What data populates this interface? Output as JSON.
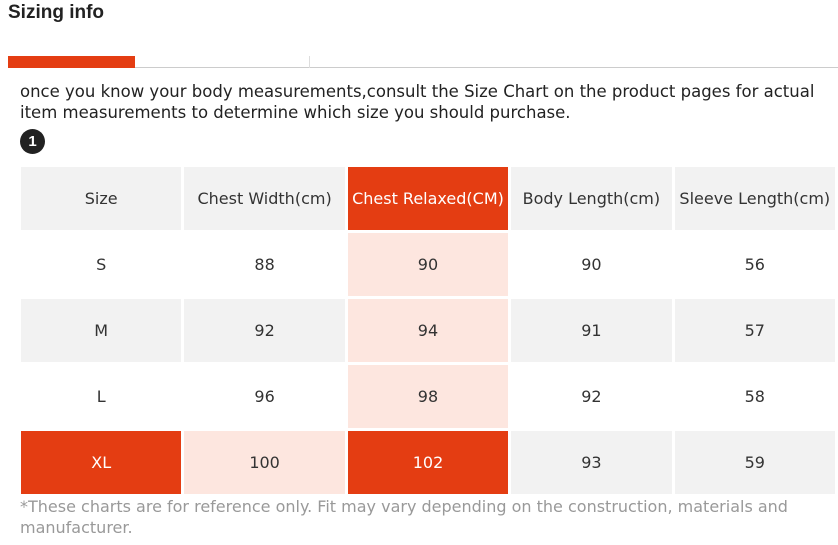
{
  "header": {
    "title": "Sizing info"
  },
  "intro": "once you know your body measurements,consult the Size Chart on the product pages for actual item measurements to determine which size you should purchase.",
  "step": "1",
  "table": {
    "columns": [
      "Size",
      "Chest Width(cm)",
      "Chest Relaxed(CM)",
      "Body Length(cm)",
      "Sleeve Length(cm)"
    ],
    "rows": [
      [
        "S",
        88,
        90,
        90,
        56
      ],
      [
        "M",
        92,
        94,
        91,
        57
      ],
      [
        "L",
        96,
        98,
        92,
        58
      ],
      [
        "XL",
        100,
        102,
        93,
        59
      ]
    ]
  },
  "footnote": "*These charts are for reference only. Fit may vary depending on the construction, materials and manufacturer."
}
